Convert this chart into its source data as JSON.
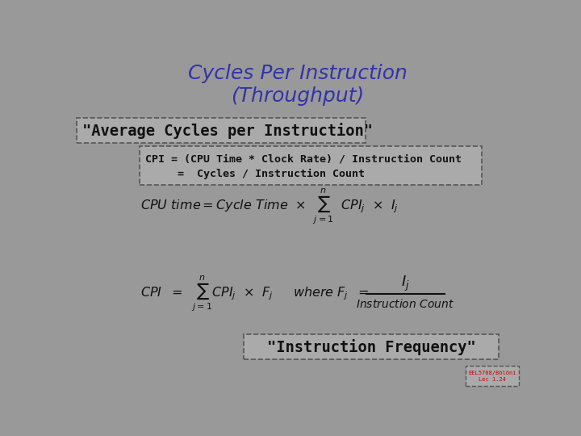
{
  "title": "Cycles Per Instruction\n(Throughput)",
  "title_color": "#3333aa",
  "bg_color": "#999999",
  "box1_text": "\"Average Cycles per Instruction\"",
  "box2_line1": "CPI = (CPU Time * Clock Rate) / Instruction Count",
  "box2_line2": "     =  Cycles / Instruction Count",
  "box3_text": "\"Instruction Frequency\"",
  "watermark_line1": "EEL5708/Bölöni",
  "watermark_line2": "Lec 1.24",
  "watermark_color": "#cc0000",
  "box_edge_color": "#555555",
  "text_color": "#111111"
}
